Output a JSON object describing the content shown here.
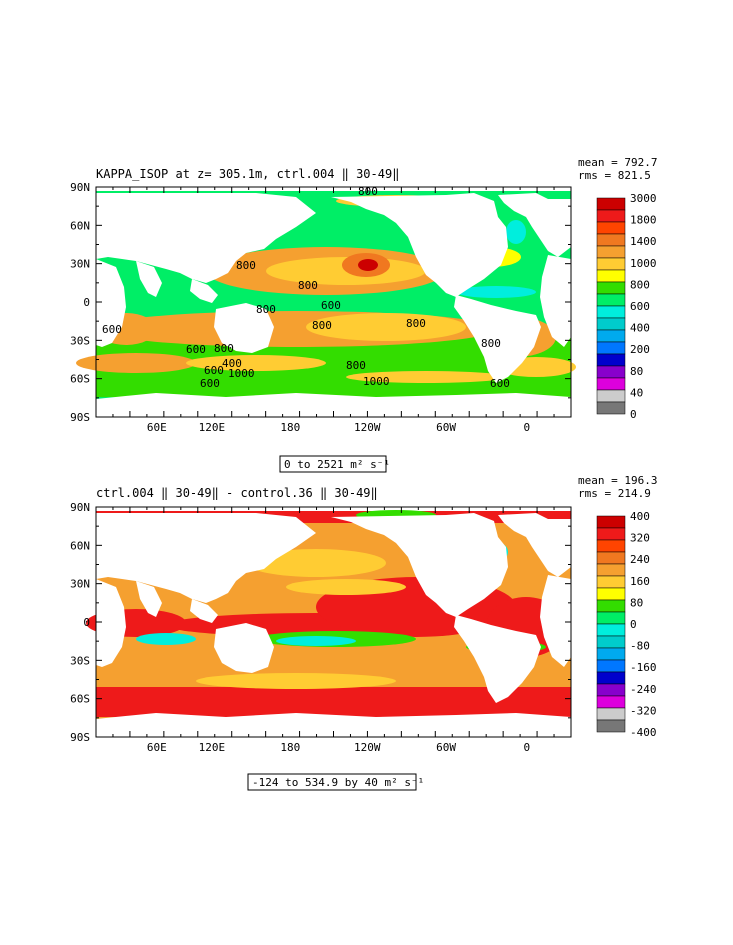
{
  "panels": [
    {
      "title": "KAPPA_ISOP at z= 305.1m, ctrl.004 ‖ 30-49‖",
      "stats_mean": "mean = 792.7",
      "stats_rms": "rms = 821.5",
      "range_text": "0 to 2521 m² s⁻¹",
      "lat_ticks": [
        "90N",
        "60N",
        "30N",
        "0",
        "30S",
        "60S",
        "90S"
      ],
      "lon_ticks": [
        "60E",
        "120E",
        "180",
        "120W",
        "60W",
        "0"
      ],
      "colorbar_labels": [
        "3000",
        "1800",
        "1400",
        "1000",
        "800",
        "600",
        "400",
        "200",
        "80",
        "40",
        "0"
      ],
      "colorbar_colors": [
        "#cc0000",
        "#ee1a1a",
        "#ff4400",
        "#f07820",
        "#f5a030",
        "#ffcc33",
        "#ffff00",
        "#33dd00",
        "#00ee66",
        "#00eedd",
        "#00cccc",
        "#00aaee",
        "#0077ff",
        "#0000cc",
        "#8800cc",
        "#dd00dd",
        "#cccccc",
        "#777777"
      ],
      "contour_labels": [
        "800",
        "800",
        "800",
        "800",
        "600",
        "800",
        "800",
        "600",
        "1000",
        "600",
        "400",
        "600",
        "600",
        "1000",
        "800",
        "800",
        "800",
        "600"
      ]
    },
    {
      "title": "ctrl.004 ‖ 30-49‖ - control.36 ‖ 30-49‖",
      "stats_mean": "mean = 196.3",
      "stats_rms": "rms = 214.9",
      "range_text": "-124 to 534.9 by 40 m² s⁻¹",
      "lat_ticks": [
        "90N",
        "60N",
        "30N",
        "0",
        "30S",
        "60S",
        "90S"
      ],
      "lon_ticks": [
        "60E",
        "120E",
        "180",
        "120W",
        "60W",
        "0"
      ],
      "colorbar_labels": [
        "400",
        "320",
        "240",
        "160",
        "80",
        "0",
        "-80",
        "-160",
        "-240",
        "-320",
        "-400"
      ],
      "colorbar_colors": [
        "#cc0000",
        "#ee1a1a",
        "#ff4400",
        "#f07820",
        "#f5a030",
        "#ffcc33",
        "#ffff00",
        "#33dd00",
        "#00ee66",
        "#00eedd",
        "#00cccc",
        "#00aaee",
        "#0077ff",
        "#0000cc",
        "#8800cc",
        "#dd00dd",
        "#cccccc",
        "#777777"
      ]
    }
  ]
}
